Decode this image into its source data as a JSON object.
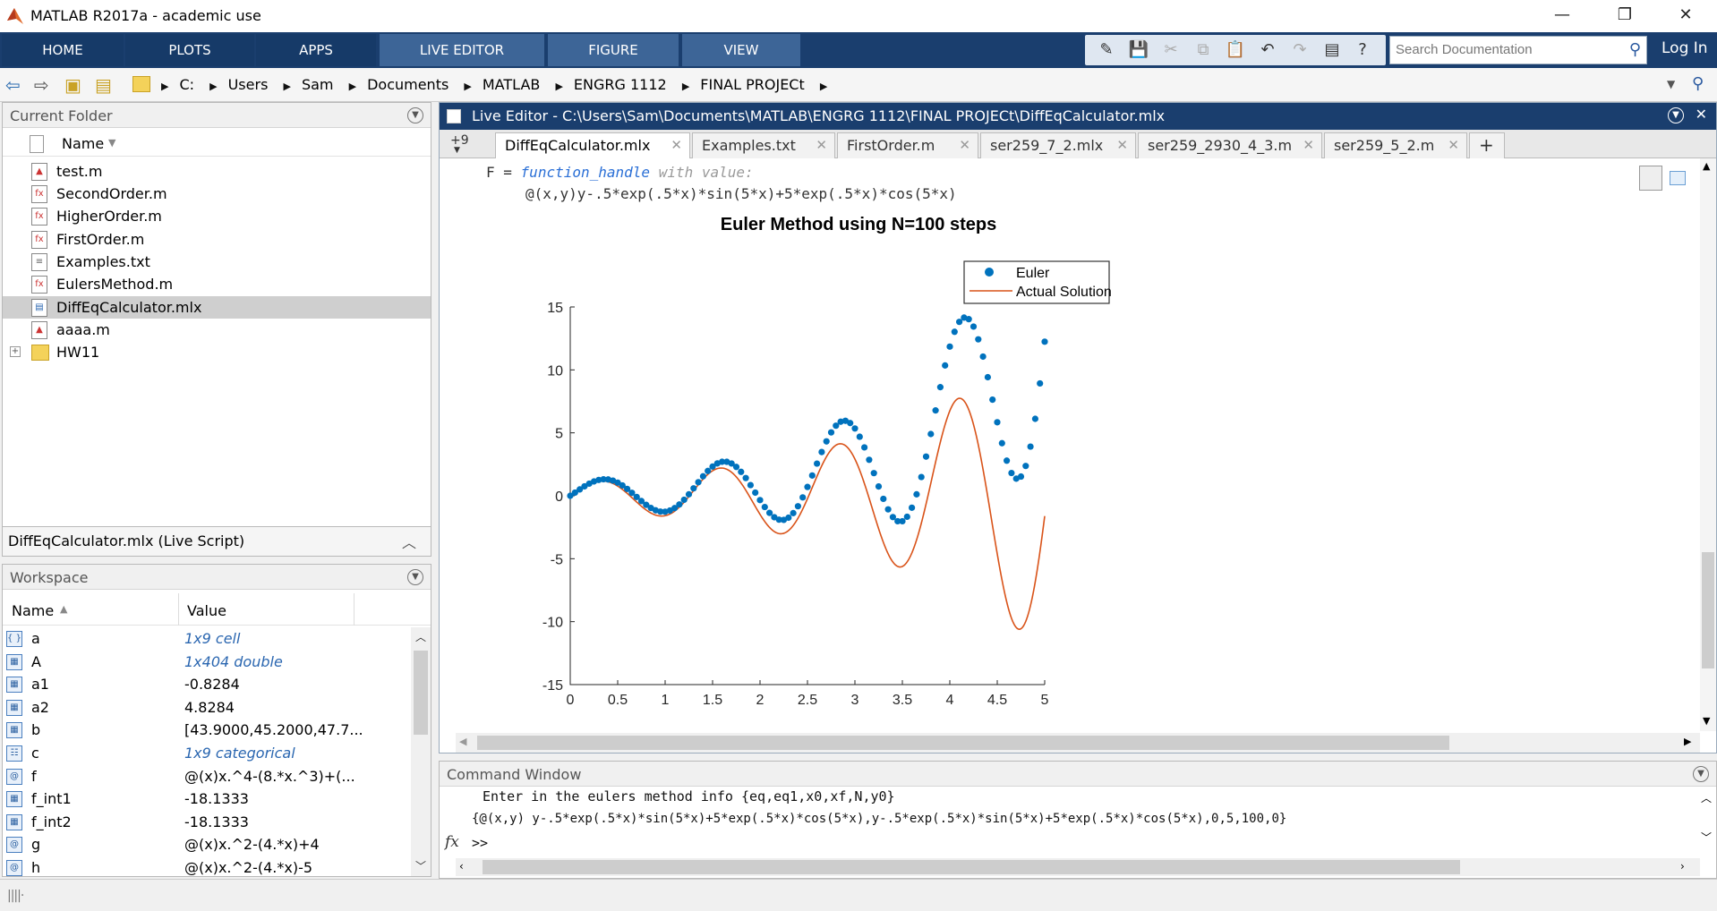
{
  "window": {
    "title": "MATLAB R2017a - academic use",
    "minimize": "—",
    "restore": "❐",
    "close": "✕"
  },
  "ribbon": {
    "tabs": [
      "HOME",
      "PLOTS",
      "APPS",
      "LIVE EDITOR",
      "FIGURE",
      "VIEW"
    ],
    "search_placeholder": "Search Documentation",
    "login": "Log In"
  },
  "breadcrumb": [
    "C:",
    "Users",
    "Sam",
    "Documents",
    "MATLAB",
    "ENGRG 1112",
    "FINAL PROJECt"
  ],
  "current_folder": {
    "title": "Current Folder",
    "name_header": "Name",
    "files": [
      "test.m",
      "SecondOrder.m",
      "HigherOrder.m",
      "FirstOrder.m",
      "Examples.txt",
      "EulersMethod.m",
      "DiffEqCalculator.mlx",
      "aaaa.m",
      "HW11"
    ],
    "selected": "DiffEqCalculator.mlx",
    "details": "DiffEqCalculator.mlx  (Live Script)"
  },
  "workspace": {
    "title": "Workspace",
    "col_name": "Name",
    "col_value": "Value",
    "vars": [
      {
        "name": "a",
        "value": "1x9 cell",
        "italic": true
      },
      {
        "name": "A",
        "value": "1x404 double",
        "italic": true
      },
      {
        "name": "a1",
        "value": "-0.8284",
        "italic": false
      },
      {
        "name": "a2",
        "value": "4.8284",
        "italic": false
      },
      {
        "name": "b",
        "value": "[43.9000,45.2000,47.7...",
        "italic": false
      },
      {
        "name": "c",
        "value": "1x9 categorical",
        "italic": true
      },
      {
        "name": "f",
        "value": "@(x)x.^4-(8.*x.^3)+(...",
        "italic": false
      },
      {
        "name": "f_int1",
        "value": "-18.1333",
        "italic": false
      },
      {
        "name": "f_int2",
        "value": "-18.1333",
        "italic": false
      },
      {
        "name": "g",
        "value": "@(x)x.^2-(4.*x)+4",
        "italic": false
      },
      {
        "name": "h",
        "value": "@(x)x.^2-(4.*x)-5",
        "italic": false
      }
    ]
  },
  "editor": {
    "title": "Live Editor - C:\\Users\\Sam\\Documents\\MATLAB\\ENGRG 1112\\FINAL PROJECt\\DiffEqCalculator.mlx",
    "more_tabs": "+9",
    "tabs": [
      "DiffEqCalculator.mlx",
      "Examples.txt",
      "FirstOrder.m",
      "ser259_7_2.mlx",
      "ser259_2930_4_3.m",
      "ser259_5_2.m"
    ],
    "output_var": "F =",
    "output_type": "function_handle",
    "output_with": "with value:",
    "output_value": "@(x,y)y-.5*exp(.5*x)*sin(5*x)+5*exp(.5*x)*cos(5*x)"
  },
  "chart_data": {
    "type": "line",
    "title": "Euler Method using N=100 steps",
    "xlabel": "",
    "ylabel": "",
    "xlim": [
      0,
      5
    ],
    "ylim": [
      -15,
      15
    ],
    "xticks": [
      "0",
      "0.5",
      "1",
      "1.5",
      "2",
      "2.5",
      "3",
      "3.5",
      "4",
      "4.5",
      "5"
    ],
    "yticks": [
      "15",
      "10",
      "5",
      "0",
      "-5",
      "-10",
      "-15"
    ],
    "legend": {
      "placement": "top-right",
      "entries": [
        "Euler",
        "Actual Solution"
      ]
    },
    "series": [
      {
        "name": "Euler",
        "style": "scatter",
        "color": "#0072bd"
      },
      {
        "name": "Actual Solution",
        "style": "line",
        "color": "#d95319"
      }
    ],
    "function": "y = exp(0.5*x)*sin(5*x)",
    "euler": {
      "x0": 0,
      "xf": 5,
      "y0": 0,
      "N": 100
    }
  },
  "command_window": {
    "title": "Command Window",
    "line1": "Enter in the eulers method info {eq,eq1,x0,xf,N,y0}",
    "line2": "{@(x,y) y-.5*exp(.5*x)*sin(5*x)+5*exp(.5*x)*cos(5*x),y-.5*exp(.5*x)*sin(5*x)+5*exp(.5*x)*cos(5*x),0,5,100,0}",
    "prompt": ">>",
    "fx": "fx"
  }
}
